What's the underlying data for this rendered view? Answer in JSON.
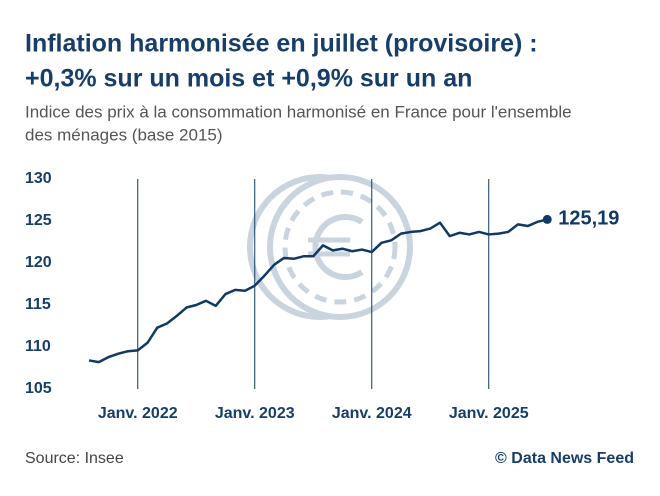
{
  "chart_data": {
    "type": "line",
    "title_lines": [
      "Inflation harmonisée en juillet (provisoire) :",
      "+0,3% sur un mois et +0,9% sur un an"
    ],
    "subtitle_lines": [
      "Indice des prix à la consommation harmonisé en France pour l'ensemble",
      "des ménages (base 2015)"
    ],
    "categories": [
      null,
      null,
      null,
      null,
      null,
      "Janv. 2022",
      null,
      null,
      null,
      null,
      null,
      null,
      null,
      null,
      null,
      null,
      null,
      "Janv. 2023",
      null,
      null,
      null,
      null,
      null,
      null,
      null,
      null,
      null,
      null,
      null,
      "Janv. 2024",
      null,
      null,
      null,
      null,
      null,
      null,
      null,
      null,
      null,
      null,
      null,
      "Janv. 2025",
      null,
      null,
      null,
      null,
      null,
      null
    ],
    "values": [
      108.4,
      108.2,
      108.8,
      109.2,
      109.5,
      109.6,
      110.5,
      112.3,
      112.8,
      113.7,
      114.7,
      115.0,
      115.5,
      114.9,
      116.3,
      116.8,
      116.7,
      117.3,
      118.5,
      119.8,
      120.6,
      120.5,
      120.8,
      120.8,
      122.1,
      121.5,
      121.7,
      121.4,
      121.6,
      121.3,
      122.4,
      122.7,
      123.5,
      123.7,
      123.8,
      124.1,
      124.8,
      123.2,
      123.6,
      123.4,
      123.7,
      123.4,
      123.5,
      123.7,
      124.6,
      124.4,
      124.9,
      125.19
    ],
    "value_labels": [
      null,
      null,
      null,
      null,
      null,
      null,
      null,
      null,
      null,
      null,
      null,
      null,
      null,
      null,
      null,
      null,
      null,
      null,
      null,
      null,
      null,
      null,
      null,
      null,
      null,
      null,
      null,
      null,
      null,
      null,
      null,
      null,
      null,
      null,
      null,
      null,
      null,
      null,
      null,
      null,
      null,
      null,
      null,
      null,
      null,
      null,
      null,
      "125,19"
    ],
    "color": "#0f3a66",
    "ylim": [
      105,
      130
    ],
    "yticks": [
      105,
      110,
      115,
      120,
      125,
      130
    ],
    "source": "Source: Insee",
    "brand": "© Data News Feed"
  }
}
